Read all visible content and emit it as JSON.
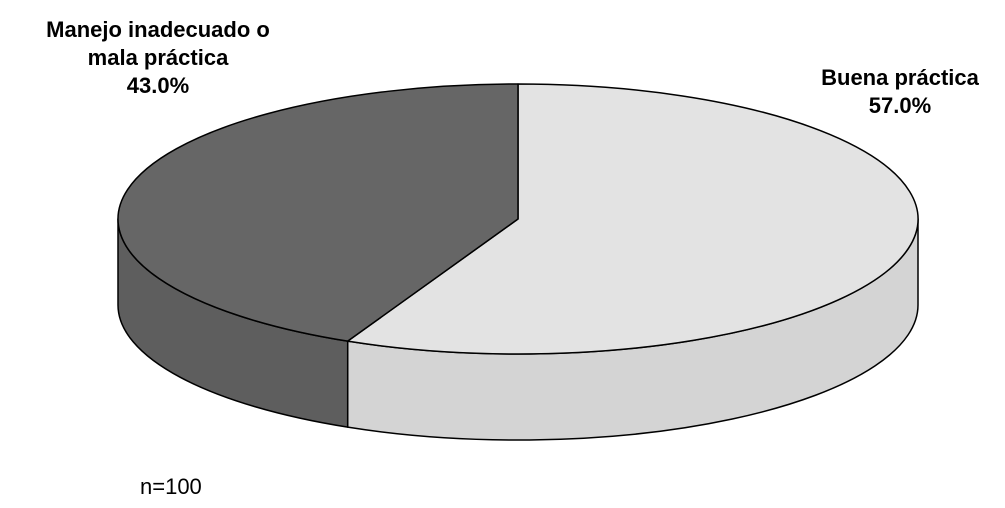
{
  "chart_data": {
    "type": "pie",
    "style": "3d",
    "slices": [
      {
        "label": "Manejo inadecuado o mala práctica",
        "label_lines": [
          "Manejo inadecuado o",
          "mala práctica"
        ],
        "value": 43.0,
        "value_label": "43.0%",
        "color": "#666666",
        "side_color": "#5e5e5e"
      },
      {
        "label": "Buena práctica",
        "label_lines": [
          "Buena práctica"
        ],
        "value": 57.0,
        "value_label": "57.0%",
        "color": "#e3e3e3",
        "side_color": "#d4d4d4"
      }
    ],
    "note": "n=100",
    "legend": "none"
  }
}
